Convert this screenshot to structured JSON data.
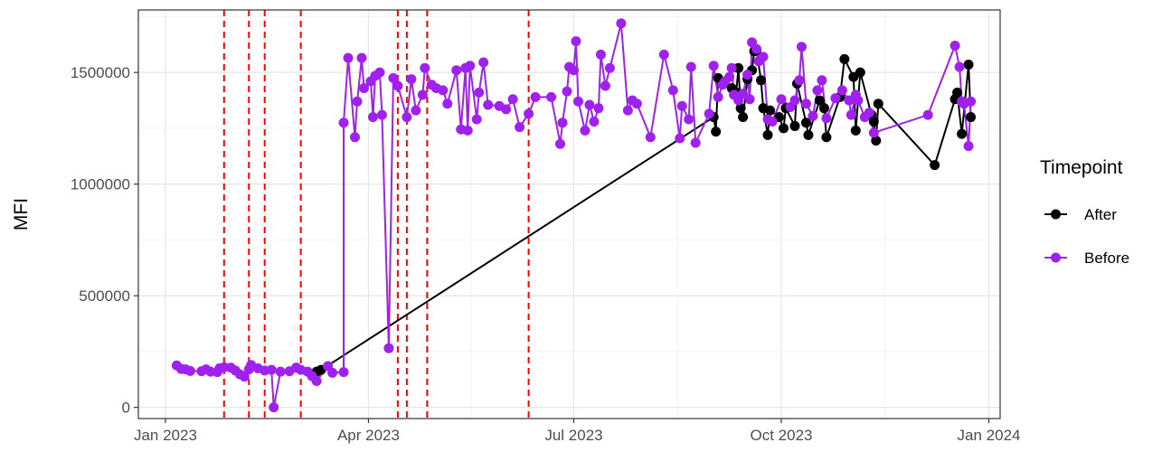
{
  "chart_data": {
    "type": "line",
    "title": "",
    "xlabel": "",
    "ylabel": "MFI",
    "xlim": [
      "2022-12-20",
      "2024-01-06"
    ],
    "ylim": [
      -50000,
      1780000
    ],
    "x_ticks": [
      {
        "date": "2023-01-01",
        "label": "Jan 2023"
      },
      {
        "date": "2023-04-01",
        "label": "Apr 2023"
      },
      {
        "date": "2023-07-01",
        "label": "Jul 2023"
      },
      {
        "date": "2023-10-01",
        "label": "Oct 2023"
      },
      {
        "date": "2024-01-01",
        "label": "Jan 2024"
      }
    ],
    "y_ticks": [
      {
        "value": 0,
        "label": "0"
      },
      {
        "value": 500000,
        "label": "500000"
      },
      {
        "value": 1000000,
        "label": "1000000"
      },
      {
        "value": 1500000,
        "label": "1500000"
      }
    ],
    "grid": true,
    "legend": {
      "title": "Timepoint",
      "position": "right"
    },
    "vlines": {
      "color": "#ff0000",
      "style": "dashed",
      "dates": [
        "2023-01-27",
        "2023-02-07",
        "2023-02-14",
        "2023-03-02",
        "2023-04-14",
        "2023-04-18",
        "2023-04-27",
        "2023-06-11"
      ]
    },
    "series": [
      {
        "name": "After",
        "color": "#000000",
        "points": [
          [
            "2023-03-09",
            160000
          ],
          [
            "2023-03-11",
            168000
          ],
          [
            "2023-09-01",
            1300000
          ],
          [
            "2023-09-02",
            1235000
          ],
          [
            "2023-09-03",
            1475000
          ],
          [
            "2023-09-09",
            1430000
          ],
          [
            "2023-09-11",
            1410000
          ],
          [
            "2023-09-12",
            1520000
          ],
          [
            "2023-09-13",
            1340000
          ],
          [
            "2023-09-14",
            1300000
          ],
          [
            "2023-09-16",
            1470000
          ],
          [
            "2023-09-18",
            1510000
          ],
          [
            "2023-09-19",
            1595000
          ],
          [
            "2023-09-20",
            1600000
          ],
          [
            "2023-09-22",
            1465000
          ],
          [
            "2023-09-23",
            1340000
          ],
          [
            "2023-09-25",
            1220000
          ],
          [
            "2023-09-26",
            1330000
          ],
          [
            "2023-09-30",
            1300000
          ],
          [
            "2023-10-02",
            1250000
          ],
          [
            "2023-10-03",
            1340000
          ],
          [
            "2023-10-07",
            1260000
          ],
          [
            "2023-10-08",
            1450000
          ],
          [
            "2023-10-12",
            1275000
          ],
          [
            "2023-10-13",
            1220000
          ],
          [
            "2023-10-18",
            1375000
          ],
          [
            "2023-10-20",
            1340000
          ],
          [
            "2023-10-21",
            1210000
          ],
          [
            "2023-10-27",
            1390000
          ],
          [
            "2023-10-29",
            1560000
          ],
          [
            "2023-11-02",
            1480000
          ],
          [
            "2023-11-03",
            1240000
          ],
          [
            "2023-11-05",
            1500000
          ],
          [
            "2023-11-10",
            1310000
          ],
          [
            "2023-11-11",
            1280000
          ],
          [
            "2023-11-12",
            1195000
          ],
          [
            "2023-11-13",
            1360000
          ],
          [
            "2023-12-08",
            1085000
          ],
          [
            "2023-12-17",
            1380000
          ],
          [
            "2023-12-18",
            1410000
          ],
          [
            "2023-12-20",
            1225000
          ],
          [
            "2023-12-23",
            1535000
          ],
          [
            "2023-12-24",
            1300000
          ]
        ]
      },
      {
        "name": "Before",
        "color": "#a020f0",
        "points": [
          [
            "2023-01-06",
            188000
          ],
          [
            "2023-01-08",
            172000
          ],
          [
            "2023-01-10",
            170000
          ],
          [
            "2023-01-12",
            163000
          ],
          [
            "2023-01-17",
            162000
          ],
          [
            "2023-01-19",
            170000
          ],
          [
            "2023-01-21",
            160000
          ],
          [
            "2023-01-24",
            158000
          ],
          [
            "2023-01-25",
            175000
          ],
          [
            "2023-01-27",
            180000
          ],
          [
            "2023-01-30",
            178000
          ],
          [
            "2023-02-01",
            165000
          ],
          [
            "2023-02-03",
            148000
          ],
          [
            "2023-02-05",
            138000
          ],
          [
            "2023-02-07",
            170000
          ],
          [
            "2023-02-08",
            190000
          ],
          [
            "2023-02-11",
            175000
          ],
          [
            "2023-02-14",
            165000
          ],
          [
            "2023-02-17",
            168000
          ],
          [
            "2023-02-18",
            0
          ],
          [
            "2023-02-21",
            160000
          ],
          [
            "2023-02-25",
            162000
          ],
          [
            "2023-02-28",
            178000
          ],
          [
            "2023-03-02",
            168000
          ],
          [
            "2023-03-05",
            160000
          ],
          [
            "2023-03-07",
            140000
          ],
          [
            "2023-03-09",
            118000
          ],
          [
            "2023-03-14",
            185000
          ],
          [
            "2023-03-16",
            155000
          ],
          [
            "2023-03-21",
            158000
          ],
          [
            "2023-03-21",
            1275000
          ],
          [
            "2023-03-23",
            1565000
          ],
          [
            "2023-03-26",
            1210000
          ],
          [
            "2023-03-27",
            1370000
          ],
          [
            "2023-03-29",
            1565000
          ],
          [
            "2023-03-30",
            1430000
          ],
          [
            "2023-04-02",
            1460000
          ],
          [
            "2023-04-03",
            1300000
          ],
          [
            "2023-04-04",
            1485000
          ],
          [
            "2023-04-06",
            1500000
          ],
          [
            "2023-04-07",
            1310000
          ],
          [
            "2023-04-10",
            265000
          ],
          [
            "2023-04-12",
            1475000
          ],
          [
            "2023-04-14",
            1440000
          ],
          [
            "2023-04-18",
            1300000
          ],
          [
            "2023-04-20",
            1470000
          ],
          [
            "2023-04-22",
            1330000
          ],
          [
            "2023-04-25",
            1400000
          ],
          [
            "2023-04-26",
            1520000
          ],
          [
            "2023-04-29",
            1445000
          ],
          [
            "2023-05-01",
            1430000
          ],
          [
            "2023-05-04",
            1420000
          ],
          [
            "2023-05-06",
            1360000
          ],
          [
            "2023-05-10",
            1510000
          ],
          [
            "2023-05-12",
            1245000
          ],
          [
            "2023-05-14",
            1520000
          ],
          [
            "2023-05-15",
            1240000
          ],
          [
            "2023-05-16",
            1530000
          ],
          [
            "2023-05-19",
            1290000
          ],
          [
            "2023-05-20",
            1410000
          ],
          [
            "2023-05-22",
            1545000
          ],
          [
            "2023-05-24",
            1355000
          ],
          [
            "2023-05-29",
            1350000
          ],
          [
            "2023-06-01",
            1335000
          ],
          [
            "2023-06-04",
            1380000
          ],
          [
            "2023-06-07",
            1255000
          ],
          [
            "2023-06-11",
            1315000
          ],
          [
            "2023-06-14",
            1390000
          ],
          [
            "2023-06-21",
            1390000
          ],
          [
            "2023-06-25",
            1180000
          ],
          [
            "2023-06-26",
            1275000
          ],
          [
            "2023-06-28",
            1415000
          ],
          [
            "2023-06-29",
            1525000
          ],
          [
            "2023-07-01",
            1510000
          ],
          [
            "2023-07-02",
            1640000
          ],
          [
            "2023-07-03",
            1370000
          ],
          [
            "2023-07-06",
            1240000
          ],
          [
            "2023-07-08",
            1355000
          ],
          [
            "2023-07-10",
            1280000
          ],
          [
            "2023-07-12",
            1340000
          ],
          [
            "2023-07-13",
            1580000
          ],
          [
            "2023-07-15",
            1440000
          ],
          [
            "2023-07-17",
            1520000
          ],
          [
            "2023-07-22",
            1720000
          ],
          [
            "2023-07-25",
            1330000
          ],
          [
            "2023-07-27",
            1375000
          ],
          [
            "2023-07-29",
            1360000
          ],
          [
            "2023-08-04",
            1210000
          ],
          [
            "2023-08-10",
            1580000
          ],
          [
            "2023-08-14",
            1420000
          ],
          [
            "2023-08-17",
            1205000
          ],
          [
            "2023-08-18",
            1350000
          ],
          [
            "2023-08-21",
            1290000
          ],
          [
            "2023-08-22",
            1525000
          ],
          [
            "2023-08-24",
            1185000
          ],
          [
            "2023-08-30",
            1315000
          ],
          [
            "2023-09-01",
            1530000
          ],
          [
            "2023-09-03",
            1390000
          ],
          [
            "2023-09-05",
            1445000
          ],
          [
            "2023-09-06",
            1460000
          ],
          [
            "2023-09-08",
            1480000
          ],
          [
            "2023-09-09",
            1520000
          ],
          [
            "2023-09-10",
            1400000
          ],
          [
            "2023-09-12",
            1375000
          ],
          [
            "2023-09-14",
            1405000
          ],
          [
            "2023-09-16",
            1490000
          ],
          [
            "2023-09-17",
            1380000
          ],
          [
            "2023-09-18",
            1635000
          ],
          [
            "2023-09-20",
            1605000
          ],
          [
            "2023-09-21",
            1550000
          ],
          [
            "2023-09-23",
            1570000
          ],
          [
            "2023-09-25",
            1290000
          ],
          [
            "2023-09-27",
            1280000
          ],
          [
            "2023-10-01",
            1380000
          ],
          [
            "2023-10-05",
            1345000
          ],
          [
            "2023-10-07",
            1375000
          ],
          [
            "2023-10-09",
            1465000
          ],
          [
            "2023-10-10",
            1615000
          ],
          [
            "2023-10-12",
            1360000
          ],
          [
            "2023-10-15",
            1305000
          ],
          [
            "2023-10-17",
            1420000
          ],
          [
            "2023-10-19",
            1465000
          ],
          [
            "2023-10-21",
            1295000
          ],
          [
            "2023-10-25",
            1385000
          ],
          [
            "2023-10-28",
            1420000
          ],
          [
            "2023-10-31",
            1375000
          ],
          [
            "2023-11-01",
            1310000
          ],
          [
            "2023-11-03",
            1400000
          ],
          [
            "2023-11-04",
            1375000
          ],
          [
            "2023-11-07",
            1300000
          ],
          [
            "2023-11-09",
            1320000
          ],
          [
            "2023-11-11",
            1230000
          ],
          [
            "2023-12-05",
            1310000
          ],
          [
            "2023-12-17",
            1620000
          ],
          [
            "2023-12-19",
            1525000
          ],
          [
            "2023-12-20",
            1370000
          ],
          [
            "2023-12-21",
            1360000
          ],
          [
            "2023-12-23",
            1170000
          ],
          [
            "2023-12-24",
            1370000
          ]
        ]
      }
    ]
  }
}
